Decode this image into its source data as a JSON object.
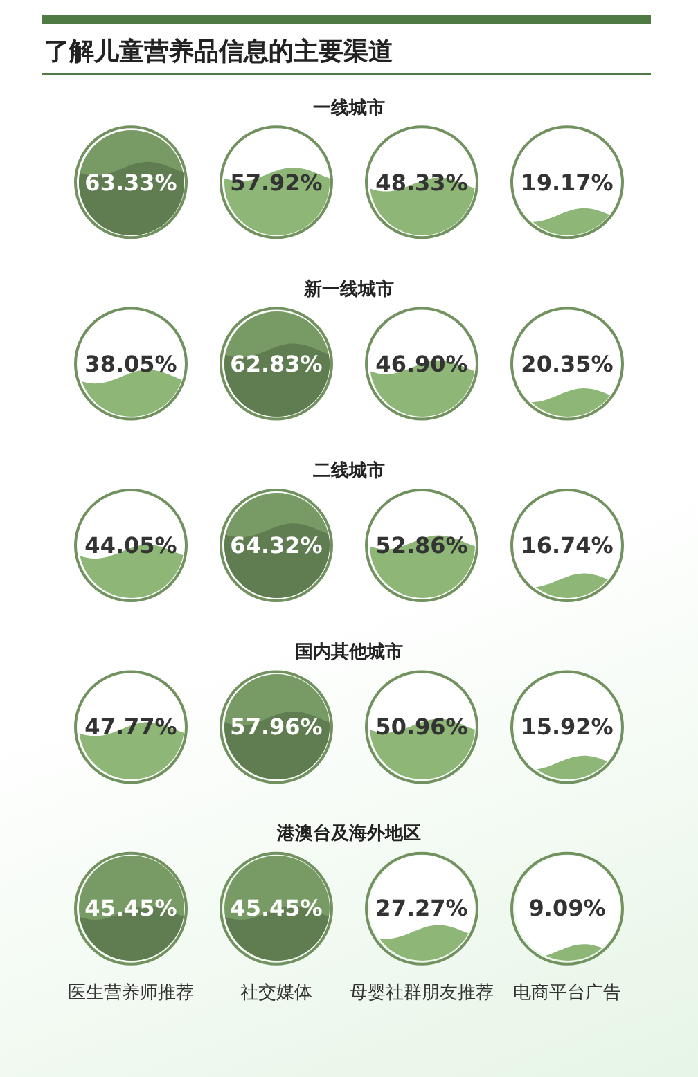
{
  "chart_data": {
    "type": "heatmap",
    "title": "了解儿童营养品信息的主要渠道",
    "categories": [
      "医生营养师推荐",
      "社交媒体",
      "母婴社群朋友推荐",
      "电商平台广告"
    ],
    "y_categories": [
      "一线城市",
      "新一线城市",
      "二线城市",
      "国内其他城市",
      "港澳台及海外地区"
    ],
    "color": "#8db677",
    "cells": [
      [
        63.33,
        57.92,
        48.33,
        19.17
      ],
      [
        38.05,
        62.83,
        46.9,
        20.35
      ],
      [
        44.05,
        64.32,
        52.86,
        16.74
      ],
      [
        47.77,
        57.96,
        50.96,
        15.92
      ],
      [
        45.45,
        45.45,
        27.27,
        9.09
      ]
    ],
    "cell_labels": [
      [
        "63.33%",
        "57.92%",
        "48.33%",
        "19.17%"
      ],
      [
        "38.05%",
        "62.83%",
        "46.90%",
        "20.35%"
      ],
      [
        "44.05%",
        "64.32%",
        "52.86%",
        "16.74%"
      ],
      [
        "47.77%",
        "57.96%",
        "50.96%",
        "15.92%"
      ],
      [
        "45.45%",
        "45.45%",
        "27.27%",
        "9.09%"
      ]
    ]
  }
}
